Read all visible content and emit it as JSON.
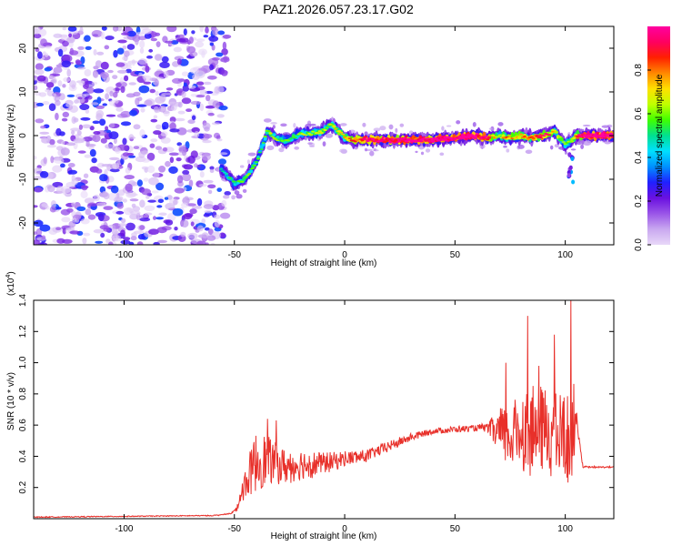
{
  "title": "PAZ1.2026.057.23.17.G02",
  "colors": {
    "snr_line": "#e8302a",
    "frame": "#000000",
    "background": "#ffffff"
  },
  "chart_data": [
    {
      "type": "heatmap",
      "name": "spectrogram",
      "xlabel": "Height of straight line (km)",
      "ylabel": "Frequency (Hz)",
      "xlim": [
        -141,
        122
      ],
      "ylim": [
        -25,
        25
      ],
      "xticks": [
        -100,
        -50,
        0,
        50,
        100
      ],
      "yticks": [
        -20,
        -10,
        0,
        10,
        20
      ],
      "colorbar": {
        "label": "Normalized spectral amplitude",
        "range": [
          0,
          1
        ],
        "ticks": [
          "0.0",
          "0.2",
          "0.4",
          "0.6",
          "0.8"
        ],
        "tick_values": [
          0.0,
          0.2,
          0.4,
          0.6,
          0.8
        ],
        "colors": [
          "#e8d8f8",
          "#c9a8f0",
          "#9a55e8",
          "#6a10e0",
          "#2020ff",
          "#0090ff",
          "#00e0ff",
          "#00e090",
          "#40ff00",
          "#c0ff00",
          "#ffe000",
          "#ff8800",
          "#ff2000",
          "#ff0060",
          "#ff00a0"
        ]
      },
      "ridge": {
        "x": [
          -55,
          -50,
          -45,
          -40,
          -37,
          -35,
          -30,
          -25,
          -20,
          -15,
          -10,
          -7,
          -5,
          0,
          5,
          10,
          20,
          30,
          40,
          50,
          60,
          65,
          70,
          75,
          80,
          85,
          90,
          95,
          100,
          103,
          105,
          110,
          115,
          122
        ],
        "freq": [
          -8,
          -11,
          -10,
          -6,
          -2,
          1,
          -1,
          -1,
          0.5,
          0.5,
          1,
          2.5,
          2,
          -0.5,
          -1,
          -1,
          -1,
          -1,
          -1,
          -0.5,
          0,
          -0.5,
          0,
          -0.5,
          0,
          -0.5,
          0,
          1,
          -2,
          -1,
          0,
          0,
          0,
          0
        ],
        "amp": [
          0.25,
          0.3,
          0.35,
          0.35,
          0.35,
          0.4,
          0.35,
          0.35,
          0.4,
          0.4,
          0.4,
          0.45,
          0.45,
          0.5,
          0.65,
          0.85,
          0.8,
          0.85,
          0.85,
          0.9,
          0.85,
          0.7,
          0.45,
          0.6,
          0.55,
          0.6,
          0.75,
          0.55,
          0.35,
          0.45,
          0.6,
          0.9,
          0.95,
          0.9
        ]
      },
      "noise_region_x": [
        -141,
        -53
      ]
    },
    {
      "type": "line",
      "name": "snr",
      "xlabel": "Height of straight line (km)",
      "ylabel": "SNR (10 * v/v)",
      "y_multiplier": "(x10",
      "y_multiplier_exp": "4",
      "y_multiplier_close": ")",
      "xlim": [
        -141,
        122
      ],
      "ylim": [
        0,
        1.4
      ],
      "xticks": [
        -100,
        -50,
        0,
        50,
        100
      ],
      "yticks": [
        0.2,
        0.4,
        0.6,
        0.8,
        1.0,
        1.2,
        1.4
      ],
      "x": [
        -141,
        -100,
        -60,
        -52,
        -49,
        -47,
        -45,
        -40,
        -35,
        -30,
        -25,
        -20,
        -15,
        -10,
        -5,
        0,
        10,
        20,
        30,
        40,
        50,
        60,
        65,
        70,
        75,
        80,
        85,
        90,
        95,
        100,
        102,
        104,
        105,
        108,
        122
      ],
      "y": [
        0.01,
        0.015,
        0.02,
        0.03,
        0.06,
        0.15,
        0.22,
        0.35,
        0.36,
        0.33,
        0.32,
        0.34,
        0.34,
        0.35,
        0.36,
        0.38,
        0.4,
        0.46,
        0.52,
        0.56,
        0.57,
        0.58,
        0.58,
        0.52,
        0.5,
        0.55,
        0.52,
        0.55,
        0.5,
        0.5,
        0.45,
        0.6,
        0.65,
        0.33,
        0.33
      ],
      "noise_amp": [
        0,
        0,
        0,
        0.005,
        0.01,
        0.06,
        0.1,
        0.2,
        0.16,
        0.12,
        0.11,
        0.1,
        0.09,
        0.07,
        0.06,
        0.05,
        0.04,
        0.035,
        0.025,
        0.02,
        0.02,
        0.02,
        0.03,
        0.18,
        0.2,
        0.26,
        0.3,
        0.28,
        0.28,
        0.3,
        0.3,
        0.25,
        0.05,
        0.005,
        0.005
      ],
      "peaks": [
        {
          "x": 83,
          "y": 1.3
        },
        {
          "x": 102.5,
          "y": 1.4
        },
        {
          "x": 95,
          "y": 1.18
        },
        {
          "x": 73,
          "y": 1.0
        },
        {
          "x": 88,
          "y": 0.98
        },
        {
          "x": -35,
          "y": 0.64
        },
        {
          "x": -31,
          "y": 0.63
        }
      ]
    }
  ]
}
